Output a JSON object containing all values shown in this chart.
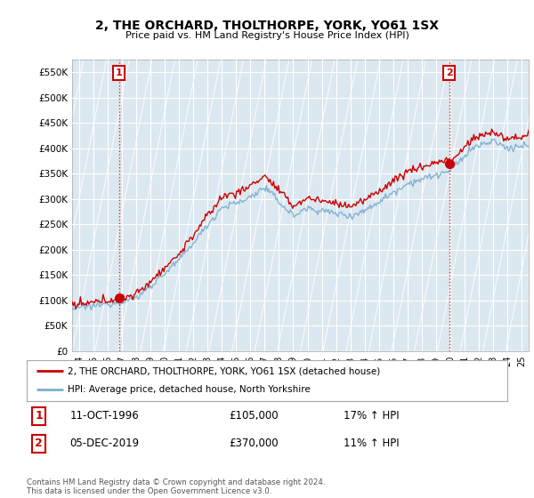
{
  "title": "2, THE ORCHARD, THOLTHORPE, YORK, YO61 1SX",
  "subtitle": "Price paid vs. HM Land Registry's House Price Index (HPI)",
  "legend_line1": "2, THE ORCHARD, THOLTHORPE, YORK, YO61 1SX (detached house)",
  "legend_line2": "HPI: Average price, detached house, North Yorkshire",
  "footnote": "Contains HM Land Registry data © Crown copyright and database right 2024.\nThis data is licensed under the Open Government Licence v3.0.",
  "annotation1_label": "1",
  "annotation1_date": "11-OCT-1996",
  "annotation1_price": "£105,000",
  "annotation1_hpi": "17% ↑ HPI",
  "annotation2_label": "2",
  "annotation2_date": "05-DEC-2019",
  "annotation2_price": "£370,000",
  "annotation2_hpi": "11% ↑ HPI",
  "sale_color": "#cc0000",
  "hpi_color": "#7aadcf",
  "sale_dates": [
    1996.79,
    2019.92
  ],
  "sale_prices": [
    105000,
    370000
  ],
  "ylim": [
    0,
    575000
  ],
  "yticks": [
    0,
    50000,
    100000,
    150000,
    200000,
    250000,
    300000,
    350000,
    400000,
    450000,
    500000,
    550000
  ],
  "xlim_start": 1993.5,
  "xlim_end": 2025.5,
  "background_color": "#ffffff",
  "plot_bg_color": "#dce8f0",
  "grid_color": "#ffffff",
  "hatch_color": "#c8d8e8",
  "vline_color": "#cc0000",
  "vline_style": ":"
}
